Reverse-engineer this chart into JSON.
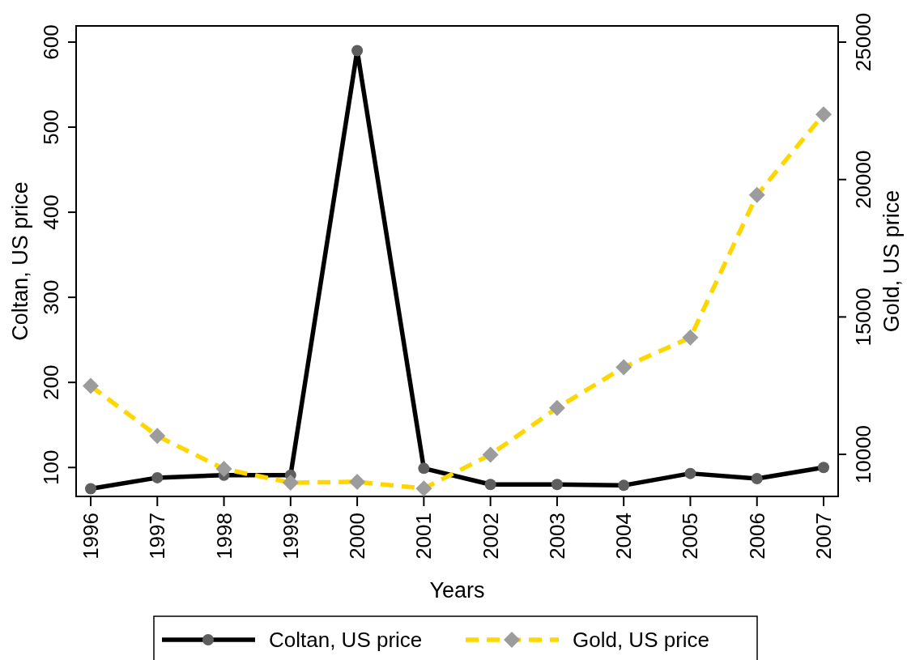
{
  "chart_data": {
    "type": "line",
    "xlabel": "Years",
    "ylabel": "Coltan, US price",
    "y2label": "Gold, US price",
    "categories": [
      "1996",
      "1997",
      "1998",
      "1999",
      "2000",
      "2001",
      "2002",
      "2003",
      "2004",
      "2005",
      "2006",
      "2007"
    ],
    "series": [
      {
        "name": "Coltan, US price",
        "color": "#000000",
        "marker": "circle",
        "line_style": "solid",
        "values": [
          75,
          88,
          91,
          91,
          590,
          99,
          80,
          80,
          79,
          93,
          87,
          100
        ]
      },
      {
        "name": "Gold, US price",
        "color": "#ffd700",
        "marker": "diamond",
        "line_style": "dashed",
        "axis": "y2",
        "values": [
          12490,
          10670,
          9470,
          8970,
          9000,
          8760,
          9990,
          11690,
          13170,
          14250,
          19440,
          22370
        ]
      }
    ],
    "ylim": [
      66,
      619
    ],
    "yticks": [
      100,
      200,
      300,
      400,
      500,
      600
    ],
    "y2lim": [
      8470,
      25590
    ],
    "y2ticks": [
      10000,
      15000,
      20000,
      25000
    ],
    "grid": false,
    "legend": "bottom"
  }
}
